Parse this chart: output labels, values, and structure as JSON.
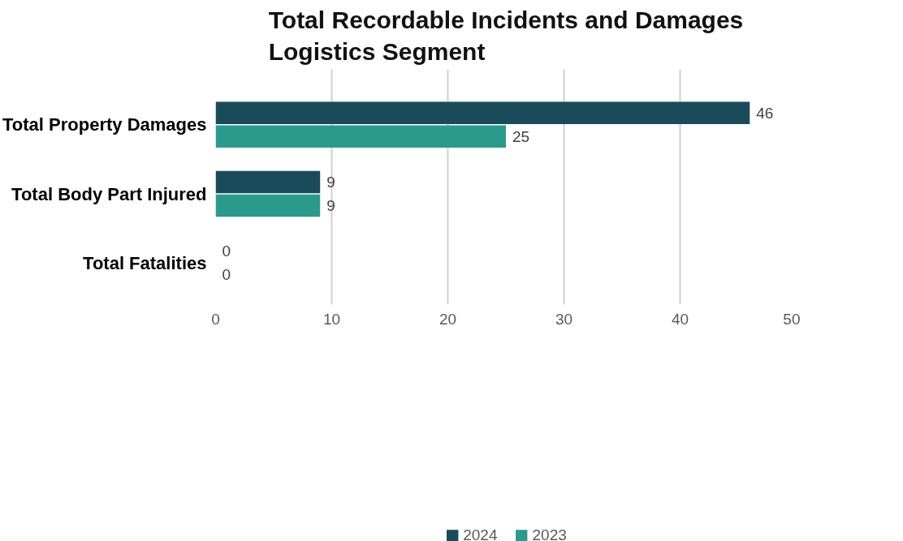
{
  "chart_data": {
    "type": "bar",
    "orientation": "horizontal",
    "title": "Total Recordable Incidents and Damages\nLogistics Segment",
    "categories": [
      "Total Property Damages",
      "Total Body Part Injured",
      "Total Fatalities"
    ],
    "series": [
      {
        "name": "2024",
        "color": "#1a4b5b",
        "values": [
          46,
          9,
          0
        ]
      },
      {
        "name": "2023",
        "color": "#2a9a8c",
        "values": [
          25,
          9,
          0
        ]
      }
    ],
    "xlim": [
      0,
      50
    ],
    "xticks": [
      0,
      10,
      20,
      30,
      40,
      50
    ],
    "grid": "x",
    "legend": "bottom",
    "data_labels": true
  }
}
